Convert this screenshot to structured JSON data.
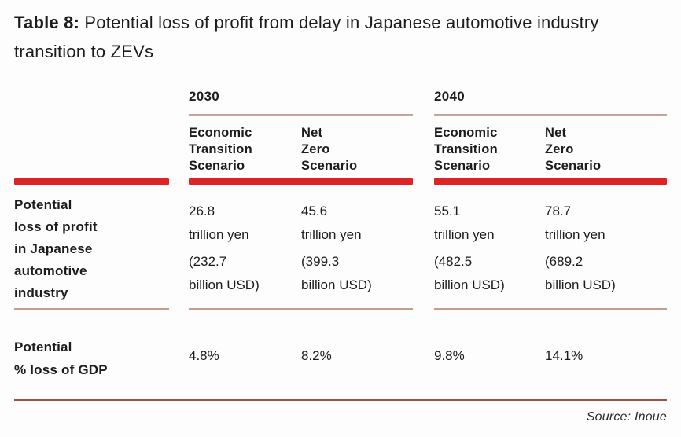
{
  "title": {
    "prefix": "Table 8:",
    "text": "Potential loss of profit from delay in Japanese automotive industry transition to ZEVs"
  },
  "table": {
    "groups": [
      {
        "year": "2030"
      },
      {
        "year": "2040"
      }
    ],
    "scenario_headers": [
      "Economic\nTransition\nScenario",
      "Net\nZero\nScenario",
      "Economic\nTransition\nScenario",
      "Net\nZero\nScenario"
    ],
    "rows": [
      {
        "label": "Potential\nloss of profit\nin Japanese\nautomotive\nindustry",
        "cells": [
          {
            "yen": "26.8\ntrillion yen",
            "usd": "(232.7\nbillion USD)"
          },
          {
            "yen": "45.6\ntrillion yen",
            "usd": "(399.3\nbillion USD)"
          },
          {
            "yen": "55.1\ntrillion yen",
            "usd": "(482.5\nbillion USD)"
          },
          {
            "yen": "78.7\ntrillion yen",
            "usd": "(689.2\nbillion USD)"
          }
        ]
      },
      {
        "label": "Potential\n% loss of GDP",
        "cells": [
          "4.8%",
          "8.2%",
          "9.8%",
          "14.1%"
        ]
      }
    ]
  },
  "source": "Source: Inoue",
  "colors": {
    "accent_red": "#e02424",
    "thin_line": "#bd8b78",
    "bottom_line": "#a2503f",
    "text": "#1c1c1c",
    "background": "#fdfdfd"
  }
}
